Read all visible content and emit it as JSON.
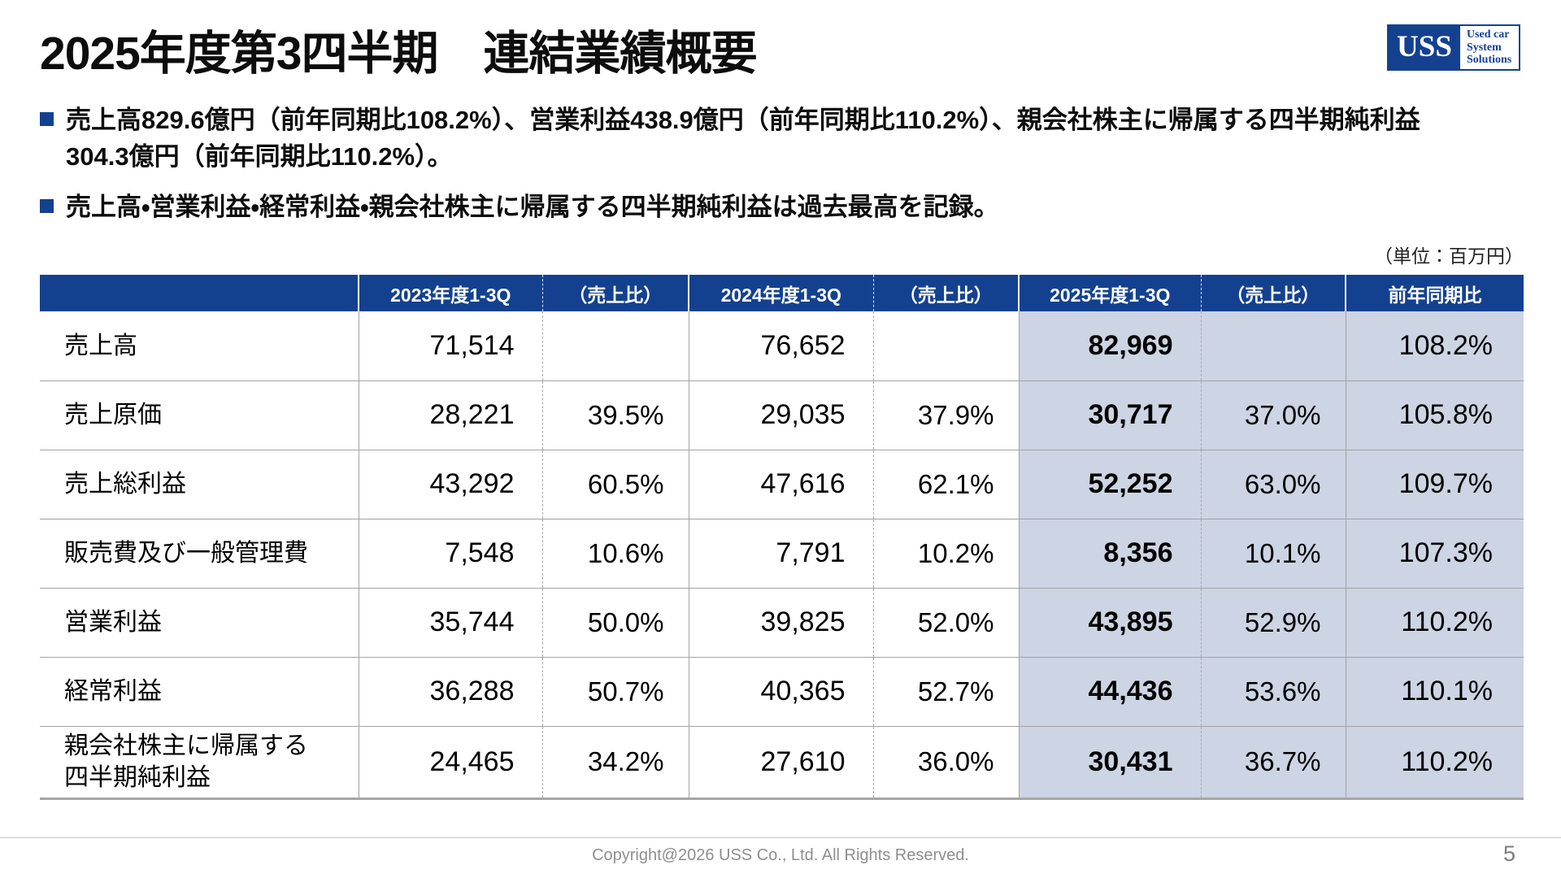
{
  "header": {
    "title": "2025年度第3四半期　連結業績概要",
    "logo": {
      "acronym": "USS",
      "lines": [
        "Used car",
        "System",
        "Solutions"
      ]
    }
  },
  "bullets": [
    "売上高829.6億円（前年同期比108.2%）、営業利益438.9億円（前年同期比110.2%）、親会社株主に帰属する四半期純利益\n304.3億円（前年同期比110.2%）。",
    "売上高・営業利益・経常利益・親会社株主に帰属する四半期純利益は過去最高を記録。"
  ],
  "table": {
    "unit_note": "（単位：百万円）",
    "columns": [
      "",
      "2023年度1-3Q",
      "（売上比）",
      "2024年度1-3Q",
      "（売上比）",
      "2025年度1-3Q",
      "（売上比）",
      "前年同期比"
    ],
    "rows": [
      {
        "label": "売上高",
        "cells": [
          "71,514",
          "",
          "76,652",
          "",
          "82,969",
          "",
          "108.2%"
        ]
      },
      {
        "label": "売上原価",
        "cells": [
          "28,221",
          "39.5%",
          "29,035",
          "37.9%",
          "30,717",
          "37.0%",
          "105.8%"
        ]
      },
      {
        "label": "売上総利益",
        "cells": [
          "43,292",
          "60.5%",
          "47,616",
          "62.1%",
          "52,252",
          "63.0%",
          "109.7%"
        ]
      },
      {
        "label": "販売費及び一般管理費",
        "cells": [
          "7,548",
          "10.6%",
          "7,791",
          "10.2%",
          "8,356",
          "10.1%",
          "107.3%"
        ]
      },
      {
        "label": "営業利益",
        "cells": [
          "35,744",
          "50.0%",
          "39,825",
          "52.0%",
          "43,895",
          "52.9%",
          "110.2%"
        ]
      },
      {
        "label": "経常利益",
        "cells": [
          "36,288",
          "50.7%",
          "40,365",
          "52.7%",
          "44,436",
          "53.6%",
          "110.1%"
        ]
      },
      {
        "label": "親会社株主に帰属する\n四半期純利益",
        "cells": [
          "24,465",
          "34.2%",
          "27,610",
          "36.0%",
          "30,431",
          "36.7%",
          "110.2%"
        ]
      }
    ]
  },
  "footer": {
    "copyright": "Copyright@2026 USS Co., Ltd. All Rights Reserved.",
    "page_number": "5"
  },
  "colors": {
    "navy": "#14418F",
    "highlight": "#CDD4E3"
  }
}
